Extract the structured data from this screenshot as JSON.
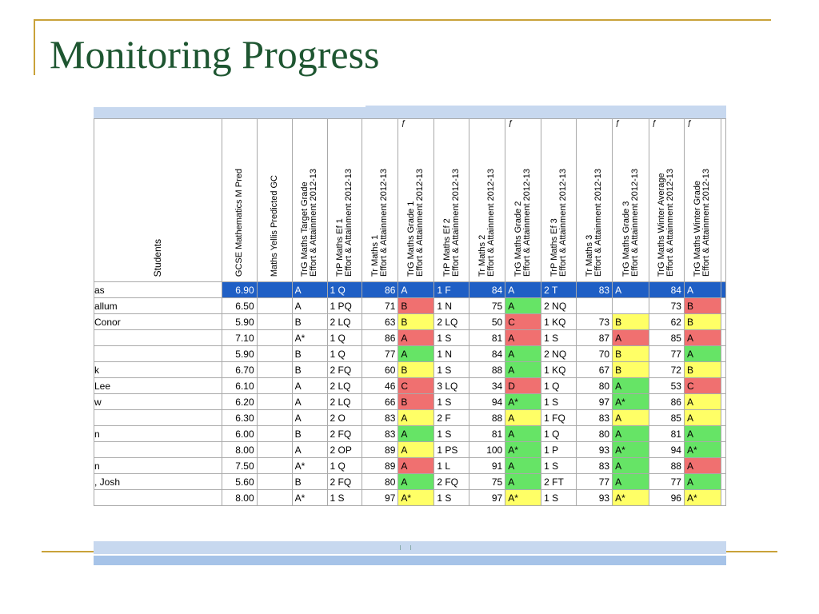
{
  "title": "Monitoring Progress",
  "grid": {
    "student_header": "Students",
    "headers": [
      {
        "label": "GCSE Mathematics M Pred",
        "fx": ""
      },
      {
        "label": "Maths Yellis Predicted GC",
        "fx": ""
      },
      {
        "label": "TrG Maths Target Grade\nEffort & Attainment 2012-13",
        "fx": ""
      },
      {
        "label": "TrP Maths Ef 1\nEffort & Attainment 2012-13",
        "fx": ""
      },
      {
        "label": "Tr Maths 1\nEffort & Attainment 2012-13",
        "fx": ""
      },
      {
        "label": "TrG Maths Grade 1\nEffort & Attainment 2012-13",
        "fx": "ƒ"
      },
      {
        "label": "TrP Maths Ef 2\nEffort & Attainment 2012-13",
        "fx": ""
      },
      {
        "label": "Tr Maths 2\nEffort & Attainment 2012-13",
        "fx": ""
      },
      {
        "label": "TrG Maths Grade 2\nEffort & Attainment 2012-13",
        "fx": "ƒ"
      },
      {
        "label": "TrP Maths Ef 3\nEffort & Attainment 2012-13",
        "fx": ""
      },
      {
        "label": "Tr Maths 3\nEffort & Attainment 2012-13",
        "fx": ""
      },
      {
        "label": "TrG Maths Grade 3\nEffort & Attainment 2012-13",
        "fx": "ƒ"
      },
      {
        "label": "TrG Maths Winter Average\nEffort & Attainment 2012-13",
        "fx": "ƒ"
      },
      {
        "label": "TrG Maths Winter Grade\nEffort & Attainment 2012-13",
        "fx": "ƒ"
      }
    ],
    "rows": [
      {
        "name": "as",
        "pred": "6.90",
        "yellis": "",
        "target": "A",
        "ef1": "1 Q",
        "m1": "86",
        "g1": "A",
        "ef2": "1 F",
        "m2": "84",
        "g2": "A",
        "ef3": "2 T",
        "m3": "83",
        "g3": "A",
        "wavg": "84",
        "wgrade": "A",
        "selected": true
      },
      {
        "name": "allum",
        "pred": "6.50",
        "yellis": "",
        "target": "A",
        "ef1": "1 PQ",
        "m1": "71",
        "g1": "B",
        "ef2": "1 N",
        "m2": "75",
        "g2": "A",
        "ef3": "2 NQ",
        "m3": "",
        "g3": "",
        "wavg": "73",
        "wgrade": "B"
      },
      {
        "name": "Conor",
        "pred": "5.90",
        "yellis": "",
        "target": "B",
        "ef1": "2 LQ",
        "m1": "63",
        "g1": "B",
        "ef2": "2 LQ",
        "m2": "50",
        "g2": "C",
        "ef3": "1 KQ",
        "m3": "73",
        "g3": "B",
        "wavg": "62",
        "wgrade": "B"
      },
      {
        "name": "",
        "pred": "7.10",
        "yellis": "",
        "target": "A*",
        "ef1": "1 Q",
        "m1": "86",
        "g1": "A",
        "ef2": "1 S",
        "m2": "81",
        "g2": "A",
        "ef3": "1 S",
        "m3": "87",
        "g3": "A",
        "wavg": "85",
        "wgrade": "A"
      },
      {
        "name": "",
        "pred": "5.90",
        "yellis": "",
        "target": "B",
        "ef1": "1 Q",
        "m1": "77",
        "g1": "A",
        "ef2": "1 N",
        "m2": "84",
        "g2": "A",
        "ef3": "2 NQ",
        "m3": "70",
        "g3": "B",
        "wavg": "77",
        "wgrade": "A"
      },
      {
        "name": "k",
        "pred": "6.70",
        "yellis": "",
        "target": "B",
        "ef1": "2 FQ",
        "m1": "60",
        "g1": "B",
        "ef2": "1 S",
        "m2": "88",
        "g2": "A",
        "ef3": "1 KQ",
        "m3": "67",
        "g3": "B",
        "wavg": "72",
        "wgrade": "B"
      },
      {
        "name": "Lee",
        "pred": "6.10",
        "yellis": "",
        "target": "A",
        "ef1": "2 LQ",
        "m1": "46",
        "g1": "C",
        "ef2": "3 LQ",
        "m2": "34",
        "g2": "D",
        "ef3": "1 Q",
        "m3": "80",
        "g3": "A",
        "wavg": "53",
        "wgrade": "C"
      },
      {
        "name": "w",
        "pred": "6.20",
        "yellis": "",
        "target": "A",
        "ef1": "2 LQ",
        "m1": "66",
        "g1": "B",
        "ef2": "1 S",
        "m2": "94",
        "g2": "A*",
        "ef3": "1 S",
        "m3": "97",
        "g3": "A*",
        "wavg": "86",
        "wgrade": "A"
      },
      {
        "name": "",
        "pred": "6.30",
        "yellis": "",
        "target": "A",
        "ef1": "2 O",
        "m1": "83",
        "g1": "A",
        "ef2": "2 F",
        "m2": "88",
        "g2": "A",
        "ef3": "1 FQ",
        "m3": "83",
        "g3": "A",
        "wavg": "85",
        "wgrade": "A"
      },
      {
        "name": "n",
        "pred": "6.00",
        "yellis": "",
        "target": "B",
        "ef1": "2 FQ",
        "m1": "83",
        "g1": "A",
        "ef2": "1 S",
        "m2": "81",
        "g2": "A",
        "ef3": "1 Q",
        "m3": "80",
        "g3": "A",
        "wavg": "81",
        "wgrade": "A"
      },
      {
        "name": "",
        "pred": "8.00",
        "yellis": "",
        "target": "A",
        "ef1": "2 OP",
        "m1": "89",
        "g1": "A",
        "ef2": "1 PS",
        "m2": "100",
        "g2": "A*",
        "ef3": "1 P",
        "m3": "93",
        "g3": "A*",
        "wavg": "94",
        "wgrade": "A*"
      },
      {
        "name": "n",
        "pred": "7.50",
        "yellis": "",
        "target": "A*",
        "ef1": "1 Q",
        "m1": "89",
        "g1": "A",
        "ef2": "1 L",
        "m2": "91",
        "g2": "A",
        "ef3": "1 S",
        "m3": "83",
        "g3": "A",
        "wavg": "88",
        "wgrade": "A"
      },
      {
        "name": ", Josh",
        "pred": "5.60",
        "yellis": "",
        "target": "B",
        "ef1": "2 FQ",
        "m1": "80",
        "g1": "A",
        "ef2": "2 FQ",
        "m2": "75",
        "g2": "A",
        "ef3": "2 FT",
        "m3": "77",
        "g3": "A",
        "wavg": "77",
        "wgrade": "A"
      },
      {
        "name": "",
        "pred": "8.00",
        "yellis": "",
        "target": "A*",
        "ef1": "1 S",
        "m1": "97",
        "g1": "A*",
        "ef2": "1 S",
        "m2": "97",
        "g2": "A*",
        "ef3": "1 S",
        "m3": "93",
        "g3": "A*",
        "wavg": "96",
        "wgrade": "A*"
      }
    ],
    "cell_colors": {
      "r1": {
        "g1": "red",
        "g2": "green",
        "wgrade": "red"
      },
      "r2": {
        "g1": "yellow",
        "g2": "red",
        "g3": "yellow",
        "wgrade": "yellow"
      },
      "r3": {
        "g1": "red",
        "g2": "red",
        "g3": "red",
        "wgrade": "red"
      },
      "r4": {
        "g1": "green",
        "g2": "green",
        "g3": "yellow",
        "wgrade": "green"
      },
      "r5": {
        "g1": "yellow",
        "g2": "green",
        "g3": "yellow",
        "wgrade": "yellow"
      },
      "r6": {
        "g1": "red",
        "g2": "red",
        "g3": "green",
        "wgrade": "red"
      },
      "r7": {
        "g1": "red",
        "g2": "green",
        "g3": "green",
        "wgrade": "yellow"
      },
      "r8": {
        "g1": "yellow",
        "g2": "yellow",
        "g3": "yellow",
        "wgrade": "yellow"
      },
      "r9": {
        "g1": "green",
        "g2": "green",
        "g3": "green",
        "wgrade": "green"
      },
      "r10": {
        "g1": "yellow",
        "g2": "green",
        "g3": "green",
        "wgrade": "green"
      },
      "r11": {
        "g1": "red",
        "g2": "green",
        "g3": "green",
        "wgrade": "red"
      },
      "r12": {
        "g1": "green",
        "g2": "green",
        "g3": "green",
        "wgrade": "green"
      },
      "r13": {
        "g1": "yellow",
        "g2": "yellow",
        "g3": "yellow",
        "wgrade": "yellow"
      }
    },
    "palette": {
      "green": "#66e466",
      "yellow": "#ffff66",
      "red": "#f07070",
      "selected_row": "#1f5fc5",
      "band": "#c7d8ef",
      "gold_rule": "#c9a23a",
      "title_color": "#1e5631"
    }
  }
}
